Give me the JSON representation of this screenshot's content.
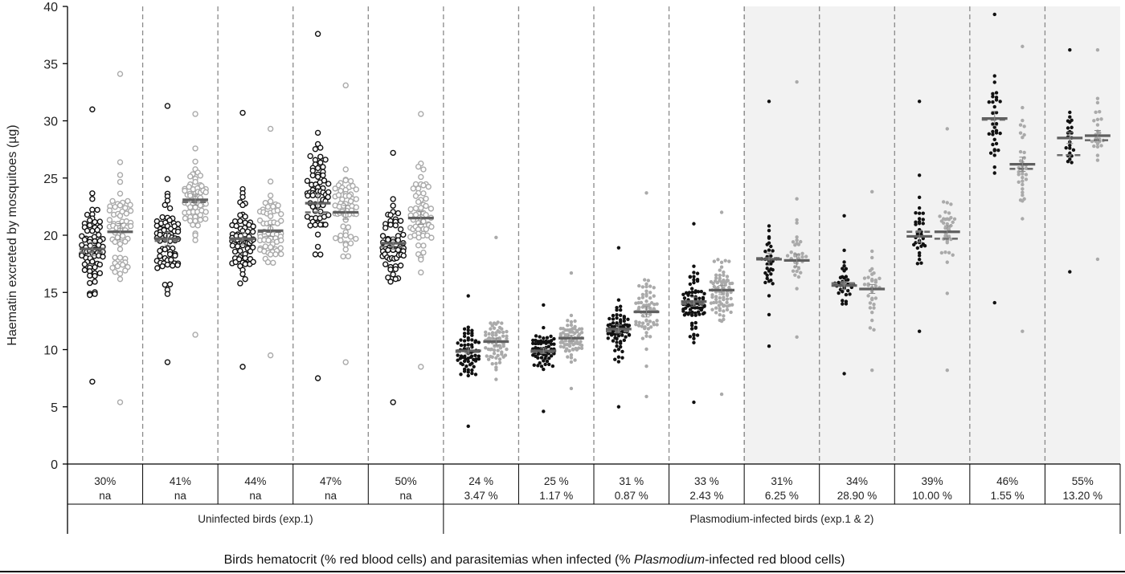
{
  "chart_data": {
    "type": "scatter",
    "ylabel": "Haematin excreted by mosquitoes (µg)",
    "ylim": [
      0,
      40
    ],
    "yticks": [
      0,
      5,
      10,
      15,
      20,
      25,
      30,
      35,
      40
    ],
    "xlabel_parts": [
      "Birds hematocrit (% red blood cells) and parasitemias when infected (% ",
      "Plasmodium",
      "-infected red blood cells)"
    ],
    "shaded_columns": [
      9,
      10,
      11,
      12,
      13
    ],
    "groups": [
      {
        "label": "Uninfected birds (exp.1)",
        "columns": [
          0,
          1,
          2,
          3,
          4
        ]
      },
      {
        "label": "Plasmodium-infected birds (exp.1 & 2)",
        "columns": [
          5,
          6,
          7,
          8,
          9,
          10,
          11,
          12,
          13
        ]
      }
    ],
    "columns": [
      {
        "hematocrit": "30%",
        "parasitemia": "na",
        "infected": false,
        "black": {
          "mean": 18.8,
          "median": 18.5,
          "min": 7.2,
          "max": 31.0,
          "n": 70
        },
        "grey": {
          "mean": 20.3,
          "median": 20.3,
          "min": 5.4,
          "max": 34.1,
          "n": 60
        }
      },
      {
        "hematocrit": "41%",
        "parasitemia": "na",
        "infected": false,
        "black": {
          "mean": 19.7,
          "median": 19.5,
          "min": 8.9,
          "max": 31.3,
          "n": 70
        },
        "grey": {
          "mean": 23.1,
          "median": 22.9,
          "min": 11.3,
          "max": 30.6,
          "n": 60
        }
      },
      {
        "hematocrit": "44%",
        "parasitemia": "na",
        "infected": false,
        "black": {
          "mean": 19.7,
          "median": 19.6,
          "min": 8.5,
          "max": 30.7,
          "n": 70
        },
        "grey": {
          "mean": 20.4,
          "median": 20.3,
          "min": 9.5,
          "max": 29.3,
          "n": 60
        }
      },
      {
        "hematocrit": "47%",
        "parasitemia": "na",
        "infected": false,
        "black": {
          "mean": 22.8,
          "median": 22.0,
          "min": 7.5,
          "max": 37.6,
          "n": 70
        },
        "grey": {
          "mean": 22.0,
          "median": 22.0,
          "min": 8.9,
          "max": 33.1,
          "n": 60
        }
      },
      {
        "hematocrit": "50%",
        "parasitemia": "na",
        "infected": false,
        "black": {
          "mean": 19.3,
          "median": 19.0,
          "min": 5.4,
          "max": 27.2,
          "n": 60
        },
        "grey": {
          "mean": 21.5,
          "median": 21.5,
          "min": 8.5,
          "max": 30.6,
          "n": 60
        }
      },
      {
        "hematocrit": "24 %",
        "parasitemia": "3.47 %",
        "infected": true,
        "black": {
          "mean": 9.9,
          "median": 9.8,
          "min": 3.3,
          "max": 14.7,
          "n": 70
        },
        "grey": {
          "mean": 10.7,
          "median": 10.7,
          "min": 7.4,
          "max": 19.8,
          "n": 70
        }
      },
      {
        "hematocrit": "25 %",
        "parasitemia": "1.17 %",
        "infected": true,
        "black": {
          "mean": 9.9,
          "median": 9.8,
          "min": 4.6,
          "max": 13.9,
          "n": 70
        },
        "grey": {
          "mean": 11.0,
          "median": 11.0,
          "min": 6.6,
          "max": 16.7,
          "n": 70
        }
      },
      {
        "hematocrit": "31 %",
        "parasitemia": "0.87 %",
        "infected": true,
        "black": {
          "mean": 11.8,
          "median": 11.6,
          "min": 5.0,
          "max": 18.9,
          "n": 70
        },
        "grey": {
          "mean": 13.3,
          "median": 13.3,
          "min": 5.9,
          "max": 23.7,
          "n": 70
        }
      },
      {
        "hematocrit": "33 %",
        "parasitemia": "2.43 %",
        "infected": true,
        "black": {
          "mean": 14.2,
          "median": 14.0,
          "min": 5.4,
          "max": 21.0,
          "n": 80
        },
        "grey": {
          "mean": 15.2,
          "median": 15.2,
          "min": 6.1,
          "max": 22.0,
          "n": 80
        }
      },
      {
        "hematocrit": "31%",
        "parasitemia": "6.25 %",
        "infected": true,
        "black": {
          "mean": 17.9,
          "median": 18.0,
          "min": 10.3,
          "max": 31.7,
          "n": 35
        },
        "grey": {
          "mean": 17.8,
          "median": 17.8,
          "min": 11.1,
          "max": 33.4,
          "n": 35
        }
      },
      {
        "hematocrit": "34%",
        "parasitemia": "28.90 %",
        "infected": true,
        "black": {
          "mean": 15.6,
          "median": 15.8,
          "min": 7.9,
          "max": 21.7,
          "n": 35
        },
        "grey": {
          "mean": 15.3,
          "median": 15.3,
          "min": 8.2,
          "max": 23.8,
          "n": 35
        }
      },
      {
        "hematocrit": "39%",
        "parasitemia": "10.00 %",
        "infected": true,
        "black": {
          "mean": 19.9,
          "median": 20.3,
          "min": 11.6,
          "max": 31.7,
          "n": 35
        },
        "grey": {
          "mean": 20.3,
          "median": 19.7,
          "min": 8.2,
          "max": 29.3,
          "n": 35
        }
      },
      {
        "hematocrit": "46%",
        "parasitemia": "1.55 %",
        "infected": true,
        "black": {
          "mean": 30.2,
          "median": 30.1,
          "min": 14.1,
          "max": 39.3,
          "n": 35
        },
        "grey": {
          "mean": 26.2,
          "median": 25.8,
          "min": 11.6,
          "max": 36.5,
          "n": 35
        }
      },
      {
        "hematocrit": "55%",
        "parasitemia": "13.20 %",
        "infected": true,
        "black": {
          "mean": 28.5,
          "median": 27.0,
          "min": 16.8,
          "max": 36.2,
          "n": 25
        },
        "grey": {
          "mean": 28.7,
          "median": 28.3,
          "min": 17.9,
          "max": 36.2,
          "n": 25
        }
      }
    ]
  }
}
